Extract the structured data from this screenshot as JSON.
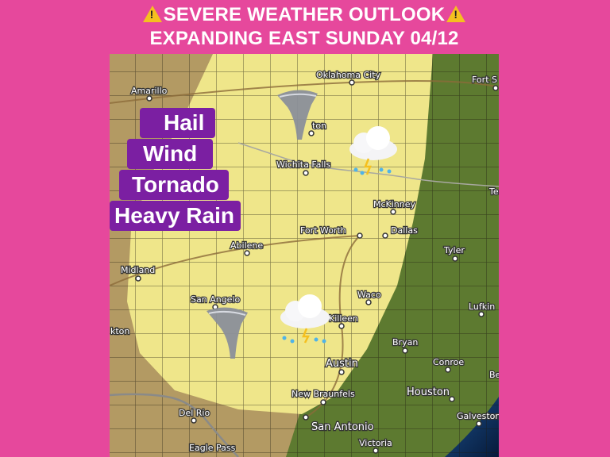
{
  "header": {
    "line1": "SEVERE WEATHER OUTLOOK",
    "line2": "EXPANDING EAST SUNDAY 04/12",
    "warning_icon": "warning-triangle-icon"
  },
  "hazards": [
    "Hail",
    "Wind",
    "Tornado",
    "Heavy Rain"
  ],
  "map": {
    "risk_area_color": "#efe68a",
    "cities": {
      "amarillo": "Amarillo",
      "oklahoma_city": "Oklahoma City",
      "fort_smith": "Fort S",
      "lawton": "ton",
      "wichita_falls": "Wichita Falls",
      "mckinney": "McKinney",
      "fort_worth": "Fort Worth",
      "dallas": "Dallas",
      "abilene": "Abilene",
      "tyler": "Tyler",
      "texarkana": "Te",
      "midland": "Midland",
      "san_angelo": "San Angelo",
      "waco": "Waco",
      "lufkin": "Lufkin",
      "killeen": "Killeen",
      "stockton": "kton",
      "bryan": "Bryan",
      "austin": "Austin",
      "conroe": "Conroe",
      "beaumont": "Be",
      "houston": "Houston",
      "new_braunfels": "New Braunfels",
      "del_rio": "Del Rio",
      "san_antonio": "San Antonio",
      "galveston": "Galveston",
      "victoria": "Victoria",
      "eagle_pass": "Eagle Pass"
    },
    "icons": [
      "tornado-icon",
      "thunderstorm-cloud-icon",
      "tornado-icon",
      "thunderstorm-cloud-icon"
    ]
  }
}
